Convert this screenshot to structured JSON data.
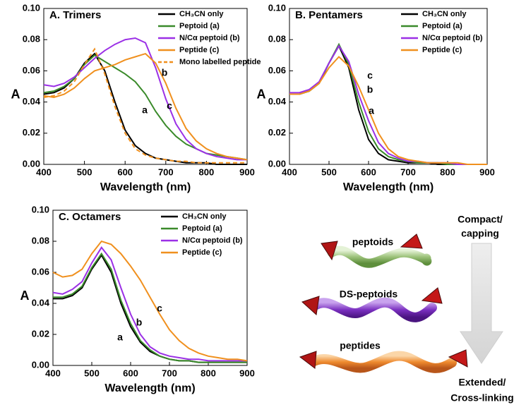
{
  "chart_data": [
    {
      "type": "line",
      "title": "A. Trimers",
      "x_label": "Wavelength (nm)",
      "y_label": "A",
      "x": [
        400,
        425,
        450,
        475,
        500,
        525,
        550,
        575,
        600,
        625,
        650,
        675,
        700,
        725,
        750,
        775,
        800,
        825,
        850,
        875,
        900
      ],
      "series": [
        {
          "name": "CH₃CN only",
          "color": "#000000",
          "dash": false,
          "values": [
            0.045,
            0.046,
            0.049,
            0.055,
            0.065,
            0.071,
            0.06,
            0.04,
            0.022,
            0.012,
            0.007,
            0.004,
            0.003,
            0.002,
            0.001,
            0.001,
            0.001,
            0,
            0,
            0,
            0
          ]
        },
        {
          "name": "Peptoid (a)",
          "color": "#3a8a2a",
          "dash": false,
          "values": [
            0.046,
            0.047,
            0.05,
            0.055,
            0.064,
            0.07,
            0.066,
            0.062,
            0.058,
            0.053,
            0.045,
            0.034,
            0.025,
            0.018,
            0.013,
            0.01,
            0.007,
            0.006,
            0.005,
            0.004,
            0.003
          ]
        },
        {
          "name": "N/Cα peptoid (b)",
          "color": "#9b30e6",
          "dash": false,
          "values": [
            0.051,
            0.05,
            0.052,
            0.056,
            0.062,
            0.068,
            0.073,
            0.077,
            0.08,
            0.081,
            0.078,
            0.062,
            0.042,
            0.026,
            0.016,
            0.01,
            0.007,
            0.005,
            0.004,
            0.003,
            0.003
          ]
        },
        {
          "name": "Peptide (c)",
          "color": "#f0901e",
          "dash": false,
          "values": [
            0.044,
            0.043,
            0.045,
            0.049,
            0.055,
            0.06,
            0.062,
            0.064,
            0.067,
            0.069,
            0.071,
            0.065,
            0.052,
            0.036,
            0.023,
            0.015,
            0.01,
            0.007,
            0.005,
            0.004,
            0.003
          ]
        },
        {
          "name": "Mono labelled peptide",
          "color": "#f0901e",
          "dash": true,
          "values": [
            0.043,
            0.044,
            0.047,
            0.053,
            0.064,
            0.074,
            0.058,
            0.037,
            0.02,
            0.01,
            0.006,
            0.004,
            0.003,
            0.002,
            0.002,
            0.001,
            0.001,
            0.001,
            0.001,
            0.001,
            0.001
          ]
        }
      ],
      "annotations": [
        "a",
        "b",
        "c"
      ],
      "xlim": [
        400,
        900
      ],
      "xticks": [
        400,
        500,
        600,
        700,
        800,
        900
      ],
      "ylim": [
        0,
        0.1
      ],
      "yticks": [
        {
          "value": 0,
          "label": "0.00"
        },
        {
          "value": 0.02,
          "label": "0.02"
        },
        {
          "value": 0.04,
          "label": "0.04"
        },
        {
          "value": 0.06,
          "label": "0.06"
        },
        {
          "value": 0.08,
          "label": "0.08"
        },
        {
          "value": 0.1,
          "label": "0.10"
        }
      ]
    },
    {
      "type": "line",
      "title": "B. Pentamers",
      "x_label": "Wavelength (nm)",
      "y_label": "A",
      "x": [
        400,
        425,
        450,
        475,
        500,
        525,
        550,
        575,
        600,
        625,
        650,
        675,
        700,
        725,
        750,
        775,
        800,
        825,
        850,
        875,
        900
      ],
      "series": [
        {
          "name": "CH₃CN only",
          "color": "#000000",
          "dash": false,
          "values": [
            0.045,
            0.045,
            0.047,
            0.052,
            0.065,
            0.076,
            0.062,
            0.035,
            0.016,
            0.007,
            0.003,
            0.002,
            0.001,
            0.001,
            0.001,
            0,
            0,
            0,
            0,
            0,
            0
          ]
        },
        {
          "name": "Peptoid (a)",
          "color": "#3a8a2a",
          "dash": false,
          "values": [
            0.045,
            0.045,
            0.047,
            0.052,
            0.065,
            0.077,
            0.064,
            0.04,
            0.021,
            0.01,
            0.005,
            0.003,
            0.002,
            0.001,
            0.001,
            0.001,
            0,
            0,
            0,
            0,
            0
          ]
        },
        {
          "name": "N/Cα peptoid (b)",
          "color": "#9b30e6",
          "dash": false,
          "values": [
            0.046,
            0.046,
            0.048,
            0.053,
            0.065,
            0.076,
            0.066,
            0.045,
            0.028,
            0.014,
            0.007,
            0.004,
            0.002,
            0.002,
            0.001,
            0.001,
            0.001,
            0,
            0,
            0,
            0
          ]
        },
        {
          "name": "Peptide (c)",
          "color": "#f0901e",
          "dash": false,
          "values": [
            0.045,
            0.045,
            0.047,
            0.052,
            0.062,
            0.069,
            0.063,
            0.05,
            0.035,
            0.02,
            0.01,
            0.005,
            0.003,
            0.002,
            0.001,
            0.001,
            0.001,
            0.001,
            0,
            0,
            0
          ]
        }
      ],
      "annotations": [
        "c",
        "b",
        "a"
      ],
      "xlim": [
        400,
        900
      ],
      "xticks": [
        400,
        500,
        600,
        700,
        800,
        900
      ],
      "ylim": [
        0,
        0.1
      ],
      "yticks": [
        {
          "value": 0,
          "label": "0.00"
        },
        {
          "value": 0.02,
          "label": "0.02"
        },
        {
          "value": 0.04,
          "label": "0.04"
        },
        {
          "value": 0.06,
          "label": "0.06"
        },
        {
          "value": 0.08,
          "label": "0.08"
        },
        {
          "value": 0.1,
          "label": "0.10"
        }
      ]
    },
    {
      "type": "line",
      "title": "C. Octamers",
      "x_label": "Wavelength (nm)",
      "y_label": "A",
      "x": [
        400,
        425,
        450,
        475,
        500,
        525,
        550,
        575,
        600,
        625,
        650,
        675,
        700,
        725,
        750,
        775,
        800,
        825,
        850,
        875,
        900
      ],
      "series": [
        {
          "name": "CH₃CN only",
          "color": "#000000",
          "dash": false,
          "values": [
            0.043,
            0.043,
            0.045,
            0.05,
            0.062,
            0.071,
            0.06,
            0.04,
            0.025,
            0.015,
            0.009,
            0.006,
            0.004,
            0.003,
            0.003,
            0.002,
            0.002,
            0.002,
            0.002,
            0.002,
            0.002
          ]
        },
        {
          "name": "Peptoid (a)",
          "color": "#3a8a2a",
          "dash": false,
          "values": [
            0.044,
            0.044,
            0.046,
            0.051,
            0.063,
            0.072,
            0.062,
            0.042,
            0.027,
            0.016,
            0.01,
            0.006,
            0.004,
            0.003,
            0.003,
            0.002,
            0.002,
            0.002,
            0.002,
            0.002,
            0.002
          ]
        },
        {
          "name": "N/Cα peptoid (b)",
          "color": "#9b30e6",
          "dash": false,
          "values": [
            0.047,
            0.046,
            0.049,
            0.054,
            0.066,
            0.076,
            0.068,
            0.05,
            0.033,
            0.02,
            0.012,
            0.008,
            0.006,
            0.005,
            0.004,
            0.004,
            0.003,
            0.003,
            0.003,
            0.003,
            0.003
          ]
        },
        {
          "name": "Peptide (c)",
          "color": "#f0901e",
          "dash": false,
          "values": [
            0.06,
            0.057,
            0.058,
            0.062,
            0.072,
            0.08,
            0.078,
            0.072,
            0.064,
            0.055,
            0.044,
            0.033,
            0.023,
            0.016,
            0.011,
            0.008,
            0.006,
            0.005,
            0.004,
            0.004,
            0.003
          ]
        }
      ],
      "annotations": [
        "a",
        "b",
        "c"
      ],
      "xlim": [
        400,
        900
      ],
      "xticks": [
        400,
        500,
        600,
        700,
        800,
        900
      ],
      "ylim": [
        0,
        0.1
      ],
      "yticks": [
        {
          "value": 0,
          "label": "0.00"
        },
        {
          "value": 0.02,
          "label": "0.02"
        },
        {
          "value": 0.04,
          "label": "0.04"
        },
        {
          "value": 0.06,
          "label": "0.06"
        },
        {
          "value": 0.08,
          "label": "0.08"
        },
        {
          "value": 0.1,
          "label": "0.10"
        }
      ]
    }
  ],
  "diagram": {
    "labels": [
      "peptoids",
      "DS-peptoids",
      "peptides"
    ],
    "top_label": [
      "Compact/",
      "capping"
    ],
    "bottom_label": [
      "Extended/",
      "Cross-linking"
    ]
  }
}
